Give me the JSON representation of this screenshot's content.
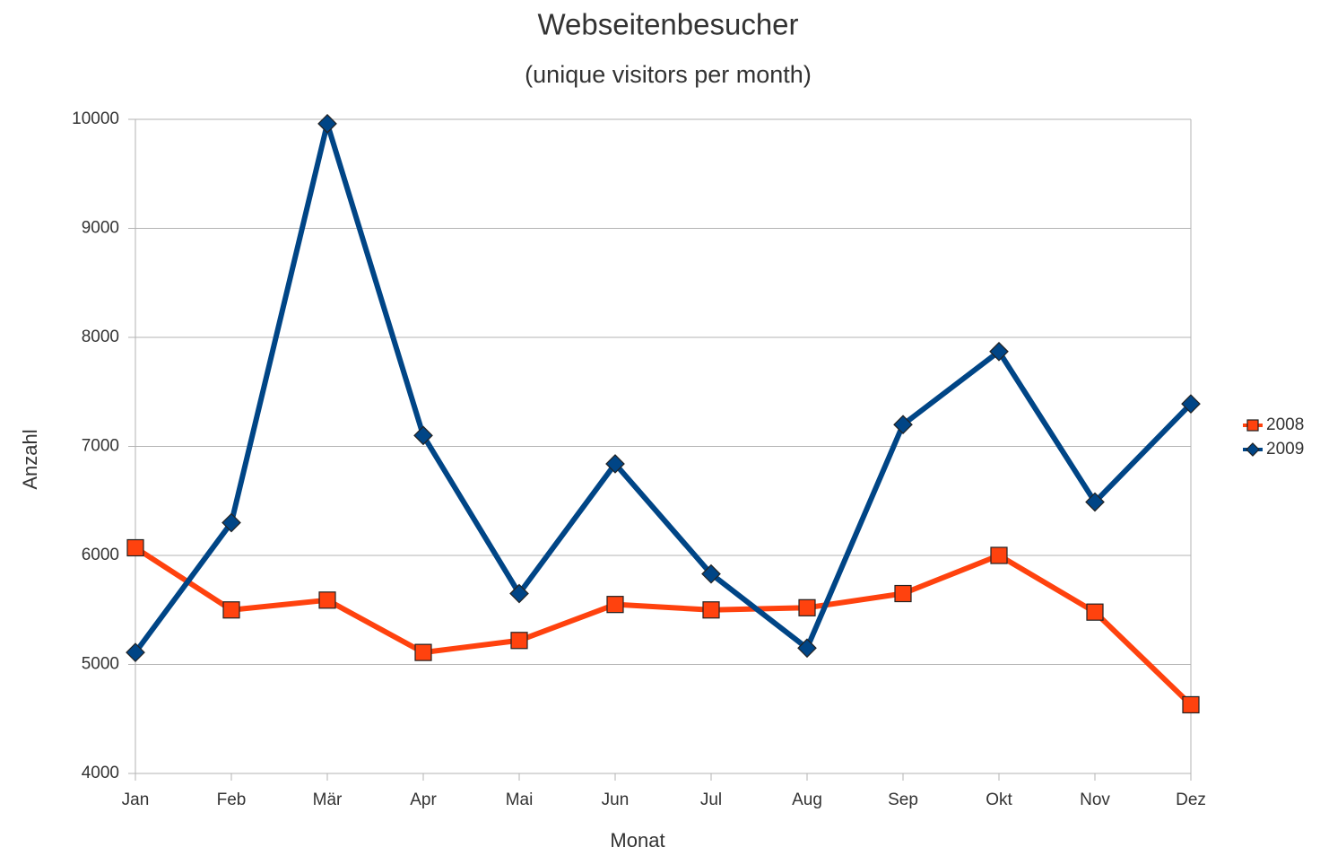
{
  "chart_data": {
    "type": "line",
    "title": "Webseitenbesucher",
    "subtitle": "(unique visitors per month)",
    "x_label": "Monat",
    "y_label": "Anzahl",
    "categories": [
      "Jan",
      "Feb",
      "Mär",
      "Apr",
      "Mai",
      "Jun",
      "Jul",
      "Aug",
      "Sep",
      "Okt",
      "Nov",
      "Dez"
    ],
    "series": [
      {
        "name": "2008",
        "color": "#ff420e",
        "marker": "square",
        "values": [
          6070,
          5500,
          5590,
          5110,
          5220,
          5550,
          5500,
          5520,
          5650,
          6000,
          5480,
          4630
        ]
      },
      {
        "name": "2009",
        "color": "#004586",
        "marker": "diamond",
        "values": [
          5110,
          6300,
          9960,
          7100,
          5650,
          6840,
          5830,
          5150,
          7200,
          7870,
          6490,
          7390
        ]
      }
    ],
    "ylim": [
      4000,
      10000
    ],
    "yticks": [
      4000,
      5000,
      6000,
      7000,
      8000,
      9000,
      10000
    ],
    "grid": true,
    "legend": "right"
  }
}
